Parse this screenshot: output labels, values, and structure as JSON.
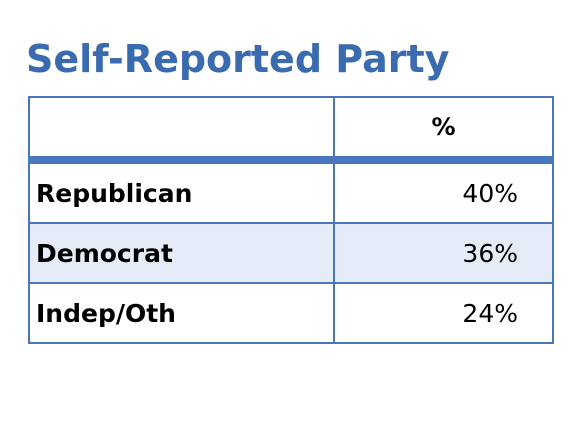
{
  "chart_data": {
    "type": "table",
    "title": "Self-Reported Party",
    "columns": [
      "",
      "%"
    ],
    "rows": [
      {
        "label": "Republican",
        "value": 40,
        "display": "40%"
      },
      {
        "label": "Democrat",
        "value": 36,
        "display": "36%"
      },
      {
        "label": "Indep/Oth",
        "value": 24,
        "display": "24%"
      }
    ]
  },
  "colors": {
    "title": "#3a6ab0",
    "border": "#4a76c0",
    "alt_row": "#e6ecf7"
  }
}
